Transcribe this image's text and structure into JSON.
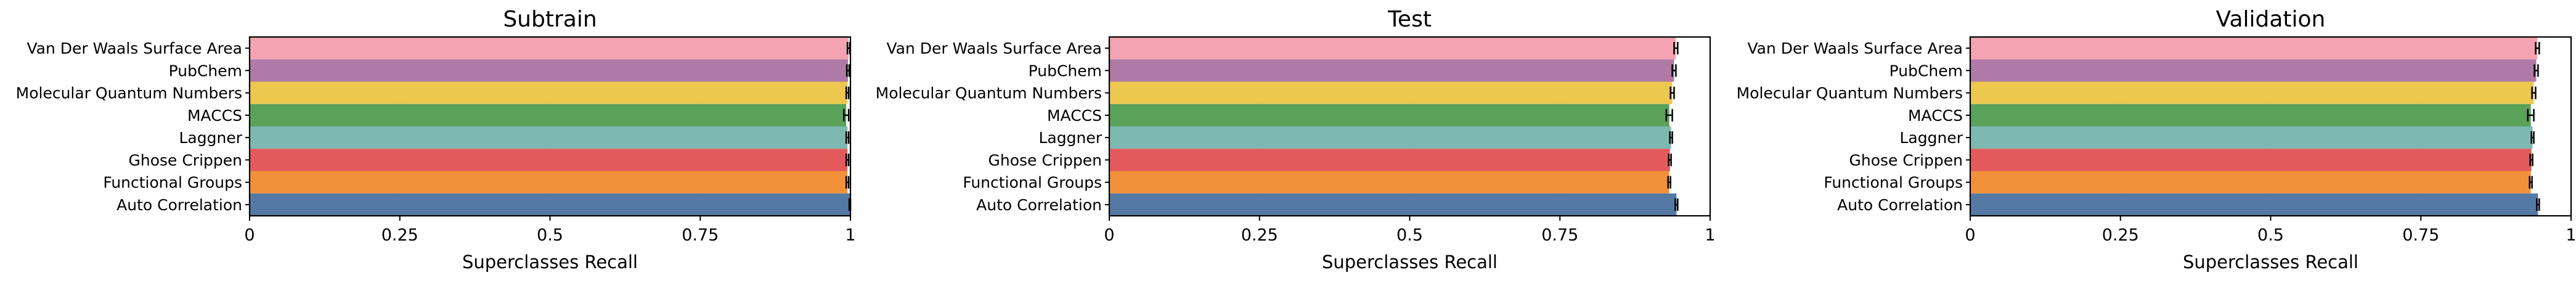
{
  "chart_data": [
    {
      "type": "bar",
      "orientation": "horizontal",
      "title": "Subtrain",
      "xlabel": "Superclasses Recall",
      "ylabel": "",
      "xlim": [
        0,
        1
      ],
      "xticks": [
        "0",
        "0.25",
        "0.5",
        "0.75",
        "1"
      ],
      "grid": true,
      "categories": [
        "Van Der Waals Surface Area",
        "PubChem",
        "Molecular Quantum Numbers",
        "MACCS",
        "Laggner",
        "Ghose Crippen",
        "Functional Groups",
        "Auto Correlation"
      ],
      "values": [
        0.997,
        0.996,
        0.995,
        0.993,
        0.995,
        0.995,
        0.995,
        0.999
      ],
      "errors": [
        0.002,
        0.002,
        0.002,
        0.004,
        0.002,
        0.002,
        0.002,
        0.001
      ],
      "colors": [
        "#f4a3b3",
        "#b07aa6",
        "#ecc84e",
        "#5aa15a",
        "#7db8b1",
        "#e45a5c",
        "#f2913a",
        "#5579a5"
      ]
    },
    {
      "type": "bar",
      "orientation": "horizontal",
      "title": "Test",
      "xlabel": "Superclasses Recall",
      "ylabel": "",
      "xlim": [
        0,
        1
      ],
      "xticks": [
        "0",
        "0.25",
        "0.5",
        "0.75",
        "1"
      ],
      "grid": true,
      "categories": [
        "Van Der Waals Surface Area",
        "PubChem",
        "Molecular Quantum Numbers",
        "MACCS",
        "Laggner",
        "Ghose Crippen",
        "Functional Groups",
        "Auto Correlation"
      ],
      "values": [
        0.943,
        0.94,
        0.937,
        0.932,
        0.935,
        0.933,
        0.932,
        0.944
      ],
      "errors": [
        0.003,
        0.003,
        0.003,
        0.005,
        0.002,
        0.002,
        0.002,
        0.002
      ],
      "colors": [
        "#f4a3b3",
        "#b07aa6",
        "#ecc84e",
        "#5aa15a",
        "#7db8b1",
        "#e45a5c",
        "#f2913a",
        "#5579a5"
      ]
    },
    {
      "type": "bar",
      "orientation": "horizontal",
      "title": "Validation",
      "xlabel": "Superclasses Recall",
      "ylabel": "",
      "xlim": [
        0,
        1
      ],
      "xticks": [
        "0",
        "0.25",
        "0.5",
        "0.75",
        "1"
      ],
      "grid": true,
      "categories": [
        "Van Der Waals Surface Area",
        "PubChem",
        "Molecular Quantum Numbers",
        "MACCS",
        "Laggner",
        "Ghose Crippen",
        "Functional Groups",
        "Auto Correlation"
      ],
      "values": [
        0.944,
        0.942,
        0.938,
        0.933,
        0.936,
        0.934,
        0.933,
        0.945
      ],
      "errors": [
        0.003,
        0.003,
        0.003,
        0.005,
        0.002,
        0.002,
        0.002,
        0.002
      ],
      "colors": [
        "#f4a3b3",
        "#b07aa6",
        "#ecc84e",
        "#5aa15a",
        "#7db8b1",
        "#e45a5c",
        "#f2913a",
        "#5579a5"
      ]
    }
  ]
}
